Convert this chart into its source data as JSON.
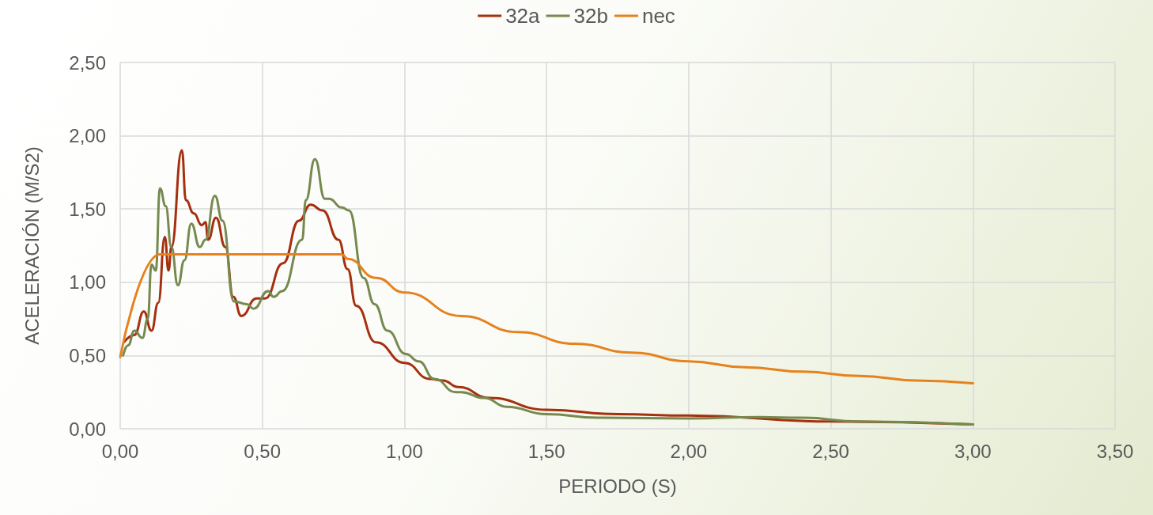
{
  "chart_data": {
    "type": "line",
    "xlabel": "PERIODO (S)",
    "ylabel": "ACELERACIÓN (M/S2)",
    "legend": "top",
    "grid": true,
    "marker": "none",
    "line_style": "solid",
    "xlim": [
      0,
      3.5
    ],
    "ylim": [
      0,
      2.5
    ],
    "xticks": [
      {
        "value": 0,
        "label": "0,00"
      },
      {
        "value": 0.5,
        "label": "0,50"
      },
      {
        "value": 1,
        "label": "1,00"
      },
      {
        "value": 1.5,
        "label": "1,50"
      },
      {
        "value": 2,
        "label": "2,00"
      },
      {
        "value": 2.5,
        "label": "2,50"
      },
      {
        "value": 3,
        "label": "3,00"
      },
      {
        "value": 3.5,
        "label": "3,50"
      }
    ],
    "yticks": [
      {
        "value": 0,
        "label": "0,00"
      },
      {
        "value": 0.5,
        "label": "0,50"
      },
      {
        "value": 1,
        "label": "1,00"
      },
      {
        "value": 1.5,
        "label": "1,50"
      },
      {
        "value": 2,
        "label": "2,00"
      },
      {
        "value": 2.5,
        "label": "2,50"
      }
    ],
    "series": [
      {
        "name": "32a",
        "color": "#a5300f",
        "x": [
          0.013,
          0.05,
          0.083,
          0.11,
          0.134,
          0.157,
          0.17,
          0.18,
          0.217,
          0.231,
          0.259,
          0.287,
          0.3,
          0.309,
          0.337,
          0.37,
          0.398,
          0.426,
          0.48,
          0.51,
          0.573,
          0.629,
          0.67,
          0.712,
          0.768,
          0.8,
          0.83,
          0.9,
          1.0,
          1.09,
          1.135,
          1.19,
          1.3,
          1.5,
          1.75,
          2.0,
          2.5,
          3.0
        ],
        "values": [
          0.59,
          0.64,
          0.8,
          0.67,
          0.86,
          1.31,
          1.08,
          1.24,
          1.9,
          1.56,
          1.47,
          1.39,
          1.41,
          1.29,
          1.44,
          1.24,
          0.9,
          0.77,
          0.89,
          0.89,
          1.13,
          1.42,
          1.53,
          1.49,
          1.29,
          1.09,
          0.84,
          0.59,
          0.45,
          0.34,
          0.33,
          0.285,
          0.21,
          0.13,
          0.1,
          0.09,
          0.05,
          0.03
        ]
      },
      {
        "name": "32b",
        "color": "#76894f",
        "x": [
          0.01,
          0.028,
          0.05,
          0.078,
          0.097,
          0.11,
          0.125,
          0.14,
          0.16,
          0.18,
          0.203,
          0.226,
          0.25,
          0.28,
          0.3,
          0.333,
          0.36,
          0.4,
          0.445,
          0.47,
          0.52,
          0.54,
          0.57,
          0.64,
          0.653,
          0.685,
          0.72,
          0.735,
          0.78,
          0.805,
          0.856,
          0.895,
          0.94,
          1.005,
          1.05,
          1.106,
          1.18,
          1.2,
          1.28,
          1.36,
          1.5,
          1.68,
          2.0,
          2.25,
          2.4,
          2.6,
          3.0
        ],
        "values": [
          0.5,
          0.57,
          0.67,
          0.62,
          0.75,
          1.12,
          1.08,
          1.64,
          1.52,
          1.24,
          0.98,
          1.15,
          1.4,
          1.24,
          1.29,
          1.59,
          1.42,
          0.87,
          0.85,
          0.82,
          0.94,
          0.9,
          0.94,
          1.29,
          1.56,
          1.84,
          1.57,
          1.57,
          1.51,
          1.49,
          1.03,
          0.85,
          0.67,
          0.51,
          0.46,
          0.34,
          0.25,
          0.25,
          0.21,
          0.15,
          0.1,
          0.075,
          0.07,
          0.08,
          0.075,
          0.05,
          0.03
        ]
      },
      {
        "name": "nec",
        "color": "#e6821e",
        "x": [
          0,
          0.14,
          0.78,
          0.8,
          0.9,
          1.0,
          1.2,
          1.4,
          1.6,
          1.8,
          2.0,
          2.2,
          2.4,
          2.6,
          2.8,
          3.0
        ],
        "values": [
          0.49,
          1.19,
          1.19,
          1.16,
          1.03,
          0.93,
          0.77,
          0.66,
          0.58,
          0.52,
          0.46,
          0.42,
          0.39,
          0.36,
          0.33,
          0.31
        ]
      }
    ]
  }
}
